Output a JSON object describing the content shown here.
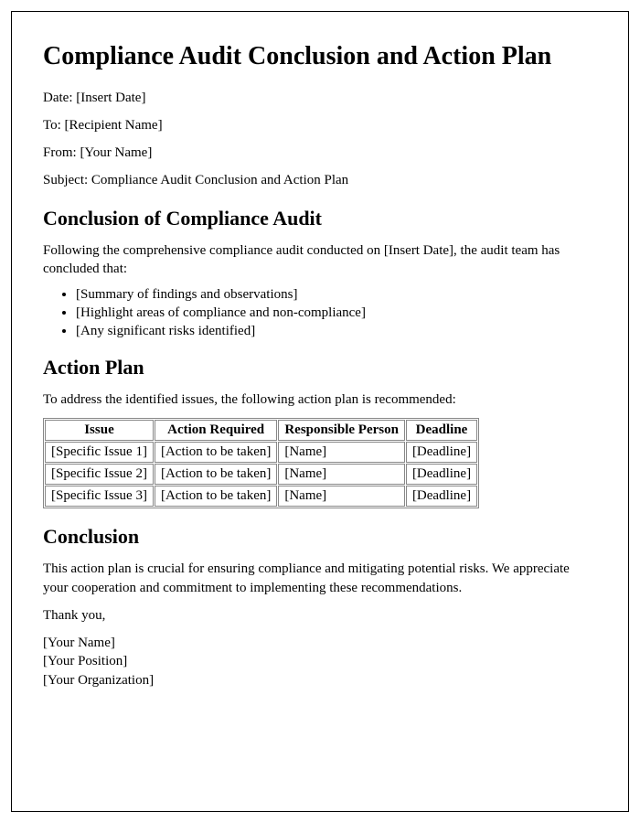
{
  "title": "Compliance Audit Conclusion and Action Plan",
  "meta": {
    "date_label": "Date: ",
    "date_value": "[Insert Date]",
    "to_label": "To: ",
    "to_value": "[Recipient Name]",
    "from_label": "From: ",
    "from_value": "[Your Name]",
    "subject_label": "Subject: ",
    "subject_value": "Compliance Audit Conclusion and Action Plan"
  },
  "section1": {
    "heading": "Conclusion of Compliance Audit",
    "intro_before": "Following the comprehensive compliance audit conducted on ",
    "intro_placeholder": "[Insert Date]",
    "intro_after": ", the audit team has concluded that:",
    "bullets": [
      "[Summary of findings and observations]",
      "[Highlight areas of compliance and non-compliance]",
      "[Any significant risks identified]"
    ]
  },
  "section2": {
    "heading": "Action Plan",
    "intro": "To address the identified issues, the following action plan is recommended:",
    "table": {
      "columns": [
        "Issue",
        "Action Required",
        "Responsible Person",
        "Deadline"
      ],
      "rows": [
        [
          "[Specific Issue 1]",
          "[Action to be taken]",
          "[Name]",
          "[Deadline]"
        ],
        [
          "[Specific Issue 2]",
          "[Action to be taken]",
          "[Name]",
          "[Deadline]"
        ],
        [
          "[Specific Issue 3]",
          "[Action to be taken]",
          "[Name]",
          "[Deadline]"
        ]
      ]
    }
  },
  "section3": {
    "heading": "Conclusion",
    "body": "This action plan is crucial for ensuring compliance and mitigating potential risks. We appreciate your cooperation and commitment to implementing these recommendations.",
    "thanks": "Thank you,",
    "signature": {
      "name": "[Your Name]",
      "position": "[Your Position]",
      "organization": "[Your Organization]"
    }
  },
  "style": {
    "background_color": "#ffffff",
    "text_color": "#000000",
    "border_color": "#000000",
    "table_border_color": "#888888",
    "h1_fontsize": 28,
    "h2_fontsize": 22,
    "body_fontsize": 15,
    "font_family": "Times New Roman"
  }
}
